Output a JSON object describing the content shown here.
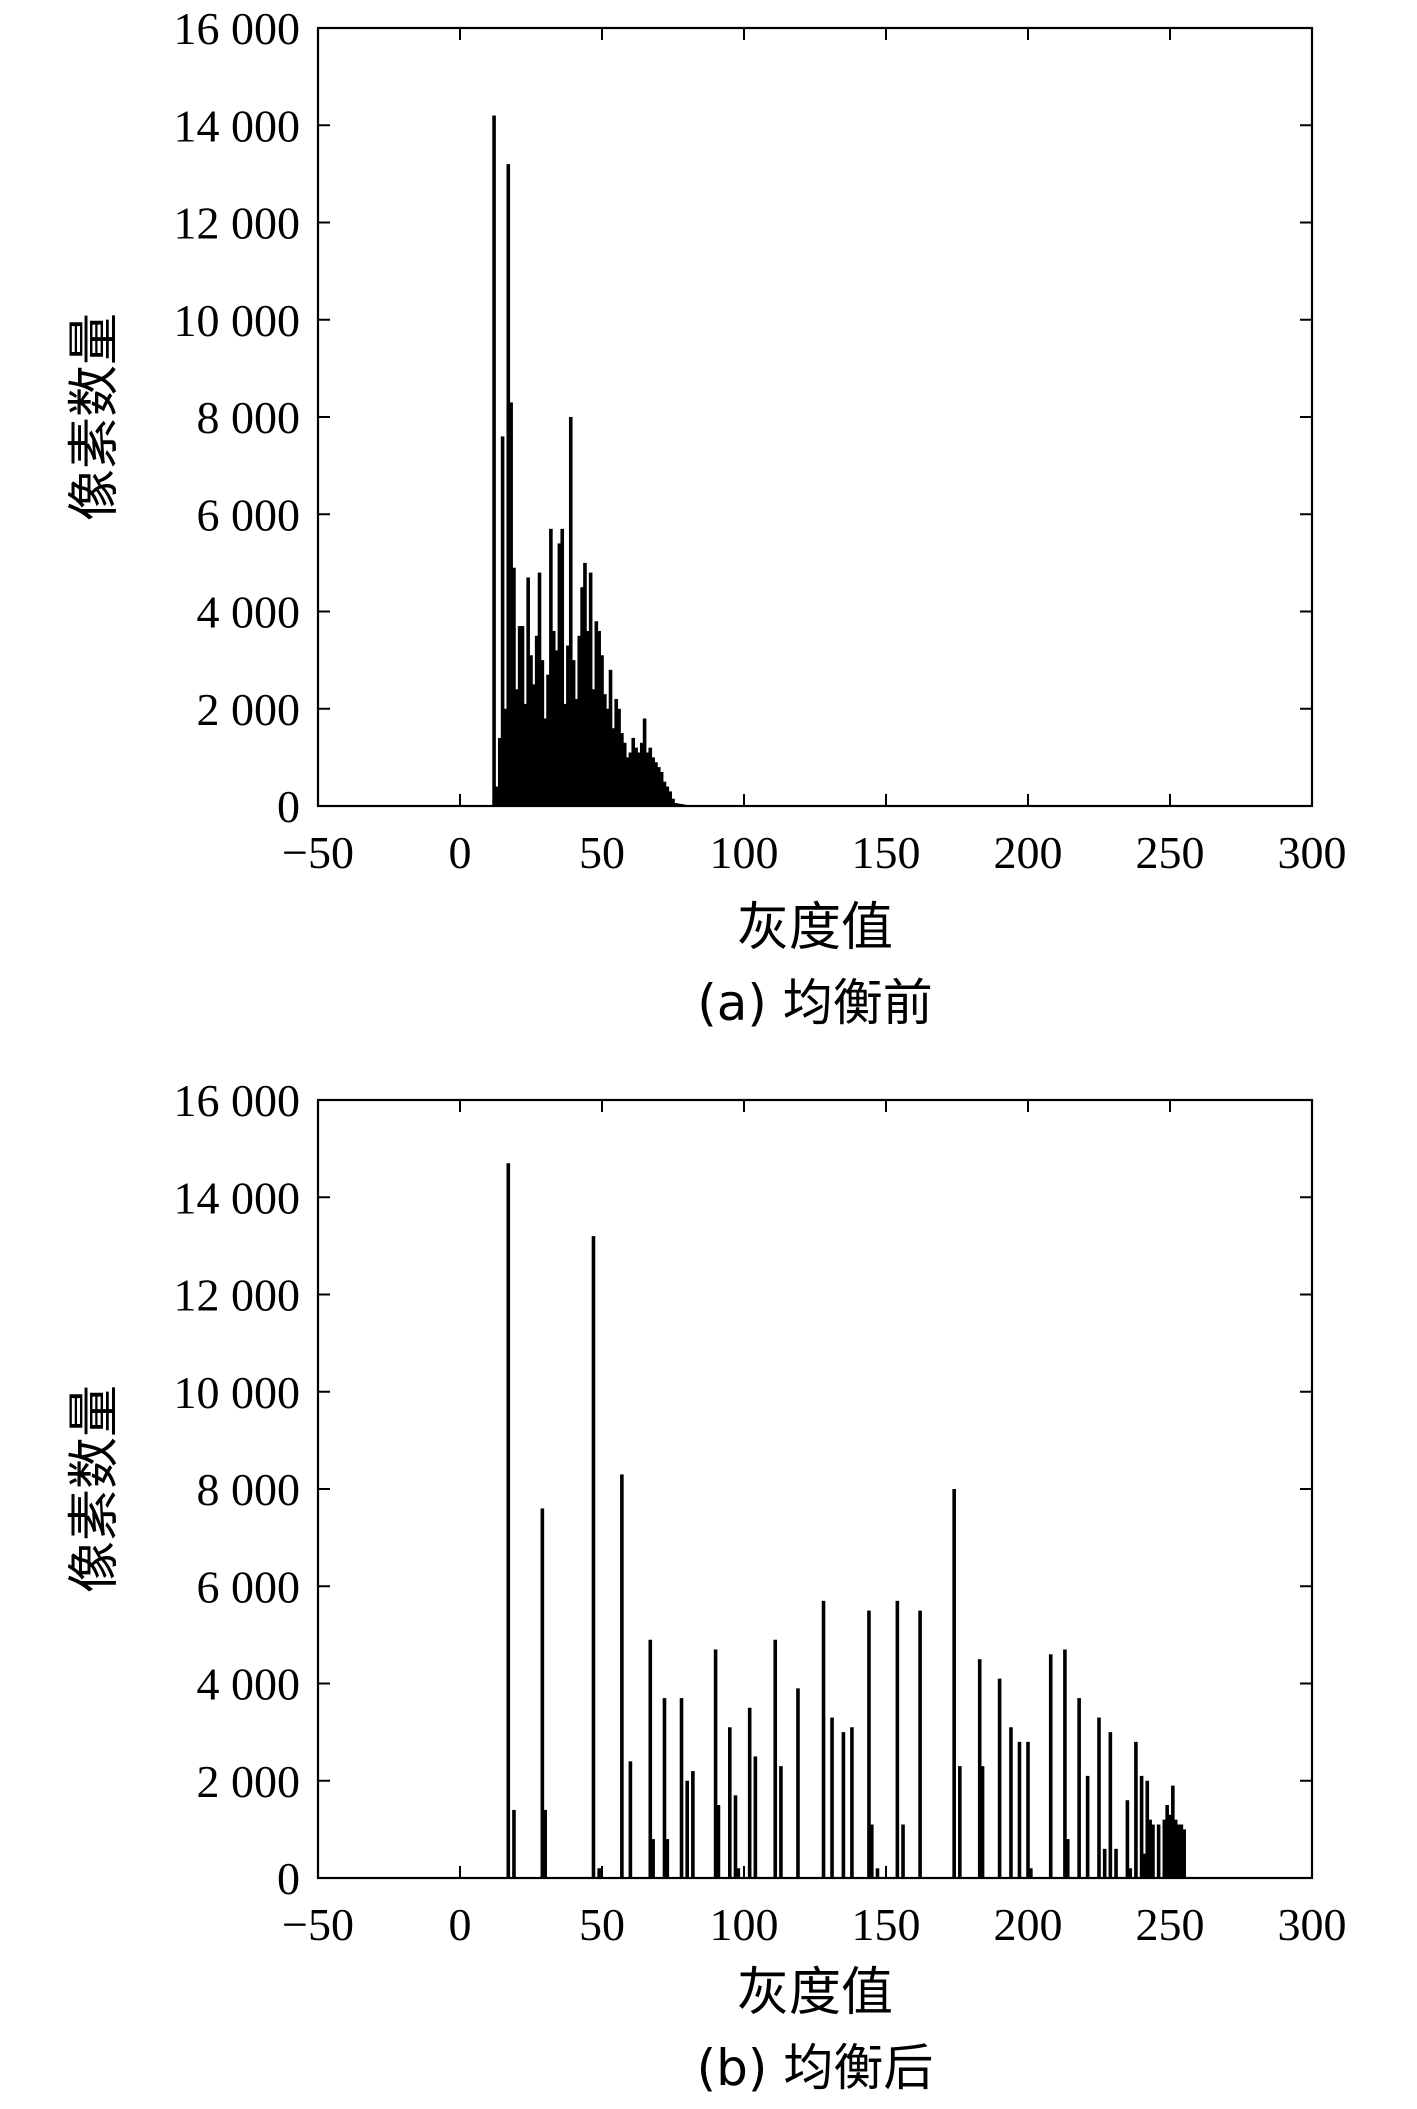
{
  "colors": {
    "bar": "#000000",
    "axes": "#000000",
    "background": "#ffffff"
  },
  "chart_data": [
    {
      "type": "bar",
      "caption": "(a) 均衡前",
      "xlabel": "灰度值",
      "ylabel": "像素数量",
      "xlim": [
        -50,
        300
      ],
      "ylim": [
        0,
        16000
      ],
      "xticks": [
        -50,
        0,
        50,
        100,
        150,
        200,
        250,
        300
      ],
      "yticks": [
        0,
        2000,
        4000,
        6000,
        8000,
        10000,
        12000,
        14000,
        16000
      ],
      "xtick_labels": [
        "−50",
        "0",
        "50",
        "100",
        "150",
        "200",
        "250",
        "300"
      ],
      "ytick_labels": [
        "0",
        "2 000",
        "4 000",
        "6 000",
        "8 000",
        "10 000",
        "12 000",
        "14 000",
        "16 000"
      ],
      "grid": false,
      "x": [
        12,
        13,
        14,
        15,
        16,
        17,
        18,
        19,
        20,
        21,
        22,
        23,
        24,
        25,
        26,
        27,
        28,
        29,
        30,
        31,
        32,
        33,
        34,
        35,
        36,
        37,
        38,
        39,
        40,
        41,
        42,
        43,
        44,
        45,
        46,
        47,
        48,
        49,
        50,
        51,
        52,
        53,
        54,
        55,
        56,
        57,
        58,
        59,
        60,
        61,
        62,
        63,
        64,
        65,
        66,
        67,
        68,
        69,
        70,
        71,
        72,
        73,
        74,
        75,
        76,
        77,
        78,
        79,
        80,
        81
      ],
      "values": [
        14200,
        400,
        1400,
        7600,
        2000,
        13200,
        8300,
        4900,
        2400,
        3700,
        3700,
        2100,
        4700,
        3100,
        2500,
        3500,
        4800,
        3000,
        1800,
        2700,
        5700,
        3600,
        3200,
        5400,
        5700,
        2100,
        3300,
        8000,
        3000,
        2200,
        3500,
        4500,
        5000,
        3600,
        4800,
        2400,
        3800,
        3600,
        3100,
        2300,
        2000,
        2800,
        1600,
        2200,
        2000,
        1500,
        1300,
        1000,
        1100,
        1400,
        1200,
        1100,
        1300,
        1800,
        1100,
        1200,
        1000,
        900,
        800,
        700,
        500,
        400,
        300,
        150,
        60,
        50,
        40,
        30,
        20,
        10
      ]
    },
    {
      "type": "bar",
      "caption": "(b) 均衡后",
      "xlabel": "灰度值",
      "ylabel": "像素数量",
      "xlim": [
        -50,
        300
      ],
      "ylim": [
        0,
        16000
      ],
      "xticks": [
        -50,
        0,
        50,
        100,
        150,
        200,
        250,
        300
      ],
      "yticks": [
        0,
        2000,
        4000,
        6000,
        8000,
        10000,
        12000,
        14000,
        16000
      ],
      "xtick_labels": [
        "−50",
        "0",
        "50",
        "100",
        "150",
        "200",
        "250",
        "300"
      ],
      "ytick_labels": [
        "0",
        "2 000",
        "4 000",
        "6 000",
        "8 000",
        "10 000",
        "12 000",
        "14 000",
        "16 000"
      ],
      "grid": false,
      "x": [
        17,
        19,
        29,
        30,
        47,
        49,
        57,
        60,
        67,
        68,
        72,
        73,
        78,
        80,
        82,
        90,
        91,
        95,
        97,
        98,
        102,
        104,
        111,
        113,
        119,
        128,
        131,
        135,
        138,
        144,
        145,
        147,
        154,
        156,
        162,
        174,
        176,
        183,
        184,
        190,
        194,
        197,
        200,
        201,
        208,
        213,
        214,
        218,
        221,
        225,
        227,
        229,
        231,
        235,
        236,
        238,
        240,
        241,
        242,
        243,
        244,
        246,
        248,
        249,
        250,
        251,
        252,
        253,
        254,
        255
      ],
      "values": [
        14700,
        1400,
        7600,
        1400,
        13200,
        200,
        8300,
        2400,
        4900,
        800,
        3700,
        800,
        3700,
        2000,
        2200,
        4700,
        1500,
        3100,
        1700,
        200,
        3500,
        2500,
        4900,
        2300,
        3900,
        5700,
        3300,
        3000,
        3100,
        5500,
        1100,
        200,
        5700,
        1100,
        5500,
        8000,
        2300,
        4500,
        2300,
        4100,
        3100,
        2800,
        2800,
        200,
        4600,
        4700,
        800,
        3700,
        2100,
        3300,
        600,
        3000,
        600,
        1600,
        200,
        2800,
        2100,
        500,
        2000,
        1200,
        1100,
        1100,
        1200,
        1500,
        1300,
        1900,
        1200,
        1100,
        1100,
        1000
      ]
    }
  ]
}
